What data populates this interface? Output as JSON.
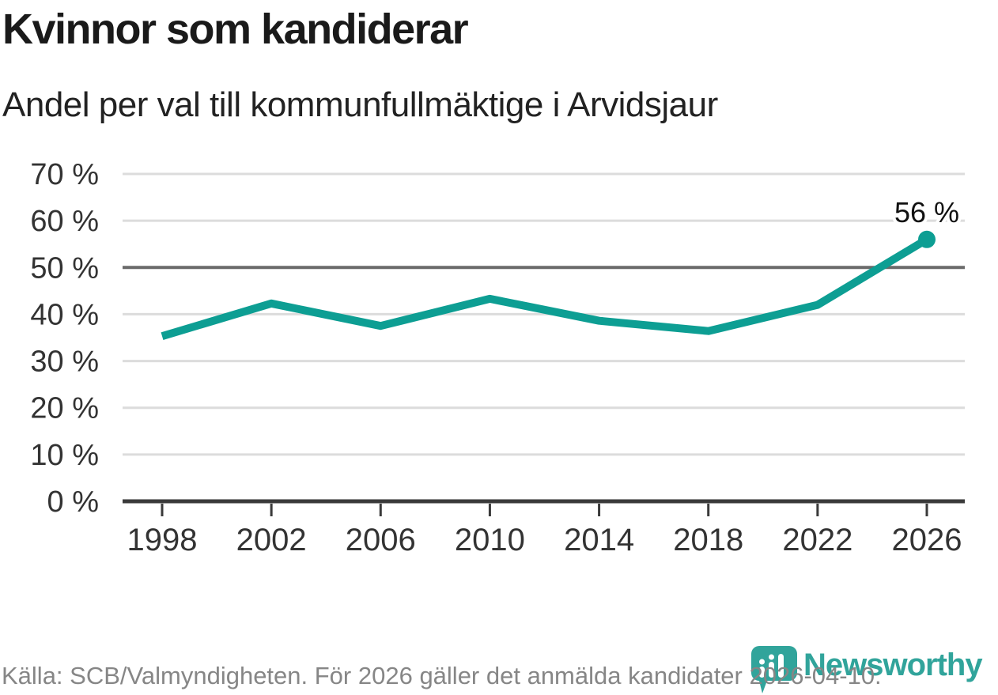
{
  "header": {
    "title": "Kvinnor som kandiderar",
    "subtitle": "Andel per val till kommunfullmäktige i Arvidsjaur"
  },
  "chart_data": {
    "type": "line",
    "title": "Kvinnor som kandiderar",
    "subtitle": "Andel per val till kommunfullmäktige i Arvidsjaur",
    "x": [
      1998,
      2002,
      2006,
      2010,
      2014,
      2018,
      2022,
      2026
    ],
    "xtick_labels": [
      "1998",
      "2002",
      "2006",
      "2010",
      "2014",
      "2018",
      "2022",
      "2026"
    ],
    "values": [
      35.3,
      42.3,
      37.5,
      43.3,
      38.6,
      36.4,
      42,
      56
    ],
    "end_label": "56 %",
    "ylim": [
      0,
      70
    ],
    "yticks": [
      0,
      10,
      20,
      30,
      40,
      50,
      60,
      70
    ],
    "ytick_labels": [
      "0 %",
      "10 %",
      "20 %",
      "30 %",
      "40 %",
      "50 %",
      "60 %",
      "70 %"
    ],
    "emphasized_gridline": 50,
    "grid": "horizontal",
    "legend_position": "none",
    "last_point_marker": true
  },
  "colors": {
    "line": "#0d9e93",
    "grid": "#dcdcdc",
    "grid_emphasis": "#6a6a6a",
    "axis": "#3a3a3a",
    "tick_label": "#333333",
    "end_label": "#111111",
    "brand": "#31a49b"
  },
  "footer": {
    "source": "Källa: SCB/Valmyndigheten. För 2026 gäller det anmälda kandidater 2026-04-10."
  },
  "branding": {
    "wordmark": "Newsworthy"
  }
}
